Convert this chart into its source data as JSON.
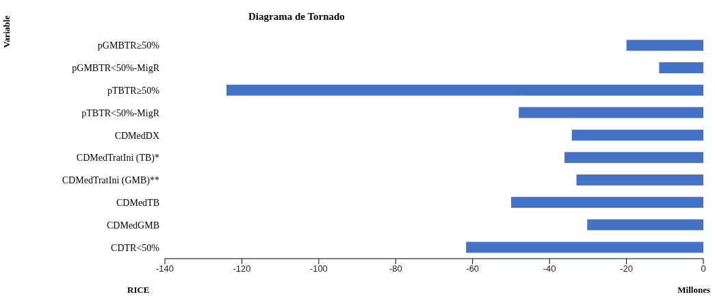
{
  "chart_data": {
    "type": "bar",
    "orientation": "horizontal",
    "title": "Diagrama de Tornado",
    "xlabel": "Millones",
    "annotations": [
      "Variable",
      "RICE"
    ],
    "categories": [
      "pGMBTR≥50%",
      "pGMBTR<50%-MigR",
      "pTBTR≥50%",
      "pTBTR<50%-MigR",
      "CDMedDX",
      "CDMedTratIni (TB)*",
      "CDMedTratIni (GMB)**",
      "CDMedTB",
      "CDMedGMB",
      "CDTR<50%"
    ],
    "values": [
      -20,
      -11.5,
      -124,
      -48,
      -34.2,
      -36.1,
      -33,
      -50,
      -30.2,
      -61.7
    ],
    "color": "#4472c4",
    "xlim": [
      -140,
      0
    ],
    "xticks": [
      -140,
      -120,
      -100,
      -80,
      -60,
      -40,
      -20,
      0
    ]
  }
}
